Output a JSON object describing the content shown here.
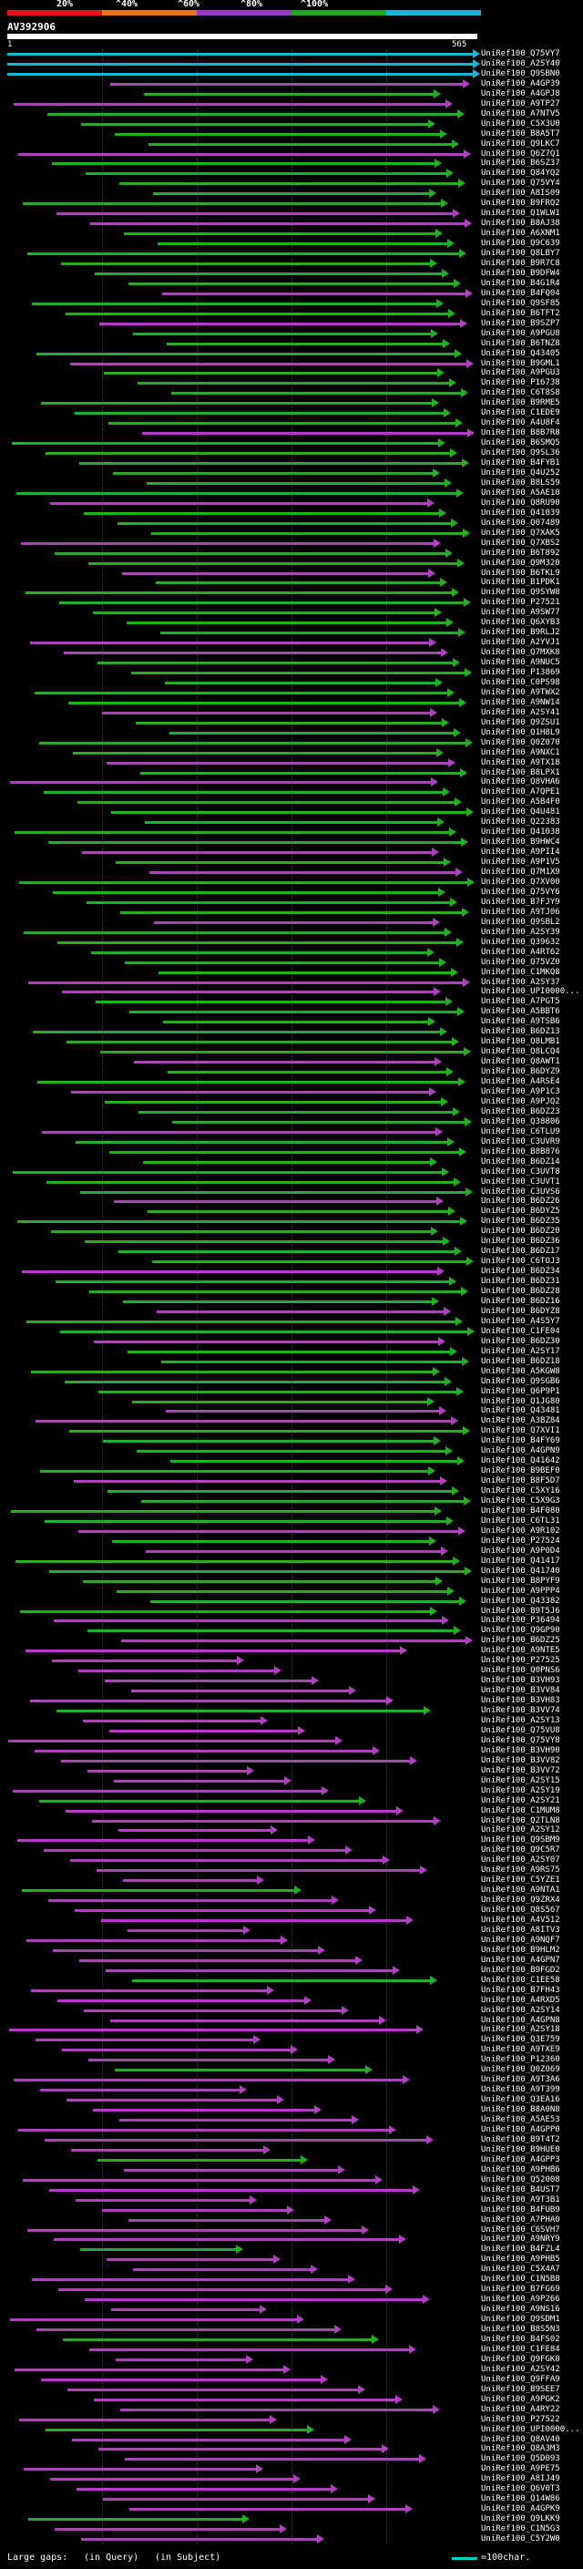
{
  "scale": {
    "labels": [
      "20%",
      "^40%",
      "^60%",
      "^80%",
      "^100%"
    ],
    "colors": [
      "#e8101a",
      "#e8721a",
      "#9a36c8",
      "#1ea81e",
      "#12b8d8"
    ]
  },
  "query": {
    "id": "AV392906",
    "start": "1",
    "end": "565"
  },
  "hit_ids": [
    "UniRef100_Q75VY7",
    "UniRef100_A2SY40",
    "UniRef100_Q9SBN0",
    "UniRef100_A4GP39",
    "UniRef100_A4GPJ8",
    "UniRef100_A9TP27",
    "UniRef100_A7NTV5",
    "UniRef100_C5X3U0",
    "UniRef100_B8A5T7",
    "UniRef100_Q9LKC7",
    "UniRef100_Q6Z7Q1",
    "UniRef100_B6SZ37",
    "UniRef100_Q84YQ2",
    "UniRef100_Q75VY4",
    "UniRef100_A8IS09",
    "UniRef100_B9FRQ2",
    "UniRef100_Q1WLW1",
    "UniRef100_B8AJ38",
    "UniRef100_A6XNM1",
    "UniRef100_Q9C639",
    "UniRef100_Q8LBY7",
    "UniRef100_B9R7C8",
    "UniRef100_B9DFW4",
    "UniRef100_B4G1R4",
    "UniRef100_B4FQ04",
    "UniRef100_Q9SF85",
    "UniRef100_B6TFT2",
    "UniRef100_B9SZP7",
    "UniRef100_A9PGU8",
    "UniRef100_B6TNZ8",
    "UniRef100_Q43405",
    "UniRef100_B9GML1",
    "UniRef100_A9PGU3",
    "UniRef100_P16738",
    "UniRef100_C6T8S8",
    "UniRef100_B9RME5",
    "UniRef100_C1EDE9",
    "UniRef100_A4U8F4",
    "UniRef100_B8B7R8",
    "UniRef100_B6SMQ5",
    "UniRef100_Q9SL36",
    "UniRef100_B4FYB1",
    "UniRef100_Q4U252",
    "UniRef100_B8LS59",
    "UniRef100_A5AE10",
    "UniRef100_Q8RU90",
    "UniRef100_Q41039",
    "UniRef100_Q07489",
    "UniRef100_Q7XAK5",
    "UniRef100_Q7XBS2",
    "UniRef100_B6T892",
    "UniRef100_Q9M320",
    "UniRef100_B6TKL9",
    "UniRef100_B1PDK1",
    "UniRef100_Q9SYW8",
    "UniRef100_P27521",
    "UniRef100_A9SW77",
    "UniRef100_Q6XYB3",
    "UniRef100_B9RLJ2",
    "UniRef100_A2YVJ1",
    "UniRef100_Q7MXK8",
    "UniRef100_A9NUC5",
    "UniRef100_P13869",
    "UniRef100_C0PS98",
    "UniRef100_A9TWX2",
    "UniRef100_A9NW14",
    "UniRef100_A2SY41",
    "UniRef100_Q9ZSU1",
    "UniRef100_Q1H8L9",
    "UniRef100_Q0Z070",
    "UniRef100_A9NXC1",
    "UniRef100_A9TX18",
    "UniRef100_B8LPX1",
    "UniRef100_Q8VHA6",
    "UniRef100_A7QPE1",
    "UniRef100_A5B4F0",
    "UniRef100_Q4U481",
    "UniRef100_Q22383",
    "UniRef100_Q41038",
    "UniRef100_B9HWC4",
    "UniRef100_A9PII4",
    "UniRef100_A9P1V5",
    "UniRef100_Q7M1X9",
    "UniRef100_Q7XV00",
    "UniRef100_Q75VY6",
    "UniRef100_B7FJY9",
    "UniRef100_A9TJ06",
    "UniRef100_Q9SBL2",
    "UniRef100_A2SY39",
    "UniRef100_Q39632",
    "UniRef100_A4RT62",
    "UniRef100_Q75VZ0",
    "UniRef100_C1MKQ8",
    "UniRef100_A2SY37",
    "UniRef100_UPI0000...",
    "UniRef100_A7PGT5",
    "UniRef100_A5BBT6",
    "UniRef100_A9TSB6",
    "UniRef100_B6DZ13",
    "UniRef100_Q8LMB1",
    "UniRef100_Q8LCQ4",
    "UniRef100_Q8AWT1",
    "UniRef100_B6DYZ9",
    "UniRef100_A4RSE4",
    "UniRef100_A9P1C3",
    "UniRef100_A9PJQ2",
    "UniRef100_B6DZ23",
    "UniRef100_Q38806",
    "UniRef100_C6TLU9",
    "UniRef100_C3UVR9",
    "UniRef100_B8B876",
    "UniRef100_B6DZ14",
    "UniRef100_C3UVT8",
    "UniRef100_C3UVT1",
    "UniRef100_C3UVS6",
    "UniRef100_B6DZ26",
    "UniRef100_B6DYZ5",
    "UniRef100_B6DZ35",
    "UniRef100_B6DZ20",
    "UniRef100_B6DZ36",
    "UniRef100_B6DZ17",
    "UniRef100_C6TOJ3",
    "UniRef100_B6DZ34",
    "UniRef100_B6DZ31",
    "UniRef100_B6DZ28",
    "UniRef100_B6DZ16",
    "UniRef100_B6DYZ8",
    "UniRef100_A4S5Y7",
    "UniRef100_C1FE04",
    "UniRef100_B6DZ30",
    "UniRef100_A2SY17",
    "UniRef100_B6DZ18",
    "UniRef100_A5KGW8",
    "UniRef100_Q9SGB6",
    "UniRef100_Q6P9P1",
    "UniRef100_Q1JG80",
    "UniRef100_Q43481",
    "UniRef100_A3BZ84",
    "UniRef100_Q7XVI1",
    "UniRef100_B4FY69",
    "UniRef100_A4GPN9",
    "UniRef100_Q41642",
    "UniRef100_B9BEF0",
    "UniRef100_B8F5D7",
    "UniRef100_C5XY16",
    "UniRef100_C5X9G3",
    "UniRef100_B4F080",
    "UniRef100_C6TL31",
    "UniRef100_A9R102",
    "UniRef100_P27524",
    "UniRef100_A9P0D4",
    "UniRef100_Q41417",
    "UniRef100_Q41740",
    "UniRef100_B8PYF9",
    "UniRef100_A9PPP4",
    "UniRef100_Q43382",
    "UniRef100_B9T5J6",
    "UniRef100_P36494",
    "UniRef100_Q9GP90",
    "UniRef100_B6DZ25",
    "UniRef100_A9NTE5",
    "UniRef100_P27525",
    "UniRef100_Q0PNS6",
    "UniRef100_B3VH93",
    "UniRef100_B3VV84",
    "UniRef100_B3VH83",
    "UniRef100_B3VV74",
    "UniRef100_A2SY13",
    "UniRef100_Q75VU8",
    "UniRef100_Q75VY8",
    "UniRef100_B3VH90",
    "UniRef100_B3VV82",
    "UniRef100_B3VV72",
    "UniRef100_A2SY15",
    "UniRef100_A2SY19",
    "UniRef100_A2SY21",
    "UniRef100_C1MUM8",
    "UniRef100_Q2TLN8",
    "UniRef100_A2SY12",
    "UniRef100_Q9SBM9",
    "UniRef100_Q9C5R7",
    "UniRef100_A2SY07",
    "UniRef100_A9RS75",
    "UniRef100_C5YZE1",
    "UniRef100_A9NTA1",
    "UniRef100_Q9ZRX4",
    "UniRef100_Q8S567",
    "UniRef100_A4V512",
    "UniRef100_A8ITV3",
    "UniRef100_A9NQF7",
    "UniRef100_B9HLM2",
    "UniRef100_A4GPN7",
    "UniRef100_B9FGD2",
    "UniRef100_C1EE58",
    "UniRef100_B7FH43",
    "UniRef100_A4RXD5",
    "UniRef100_A2SY14",
    "UniRef100_A4GPN8",
    "UniRef100_A2SY18",
    "UniRef100_Q3E759",
    "UniRef100_A9TXE9",
    "UniRef100_P12360",
    "UniRef100_Q0Z069",
    "UniRef100_A9T3A6",
    "UniRef100_A9T399",
    "UniRef100_Q3EA16",
    "UniRef100_B8A0N8",
    "UniRef100_A5AE53",
    "UniRef100_A4GPP0",
    "UniRef100_B9T4T2",
    "UniRef100_B9HUE0",
    "UniRef100_A4GPP3",
    "UniRef100_A9PHB6",
    "UniRef100_Q52008",
    "UniRef100_B4UST7",
    "UniRef100_A9T3B1",
    "UniRef100_B4FUB9",
    "UniRef100_A7PHA0",
    "UniRef100_C6SVH7",
    "UniRef100_A9NRY9",
    "UniRef100_B4FZL4",
    "UniRef100_A9PHB5",
    "UniRef100_C5X4A7",
    "UniRef100_C1N5B8",
    "UniRef100_B7FG69",
    "UniRef100_A9P266",
    "UniRef100_A9NS16",
    "UniRef100_Q9SDM1",
    "UniRef100_B8S5N3",
    "UniRef100_B4FS02",
    "UniRef100_C1FE84",
    "UniRef100_Q9FGK0",
    "UniRef100_A2SY42",
    "UniRef100_Q9FFA9",
    "UniRef100_B9SEE7",
    "UniRef100_A9PGK2",
    "UniRef100_A4RY22",
    "UniRef100_P27522",
    "UniRef100_UPI0000...",
    "UniRef100_Q8AV40",
    "UniRef100_Q8A3M3",
    "UniRef100_Q5D093",
    "UniRef100_A9PE75",
    "UniRef100_A8IJ49",
    "UniRef100_Q6V0T3",
    "UniRef100_Q14W86",
    "UniRef100_A4GPK9",
    "UniRef100_Q9LKK9",
    "UniRef100_C1N5G3",
    "UniRef100_C5Y2W0"
  ],
  "legend": {
    "text": "Large gaps: ",
    "query_marker": "(in Query)",
    "subject_marker": "(in Subject)",
    "scale_text": "=100char."
  }
}
